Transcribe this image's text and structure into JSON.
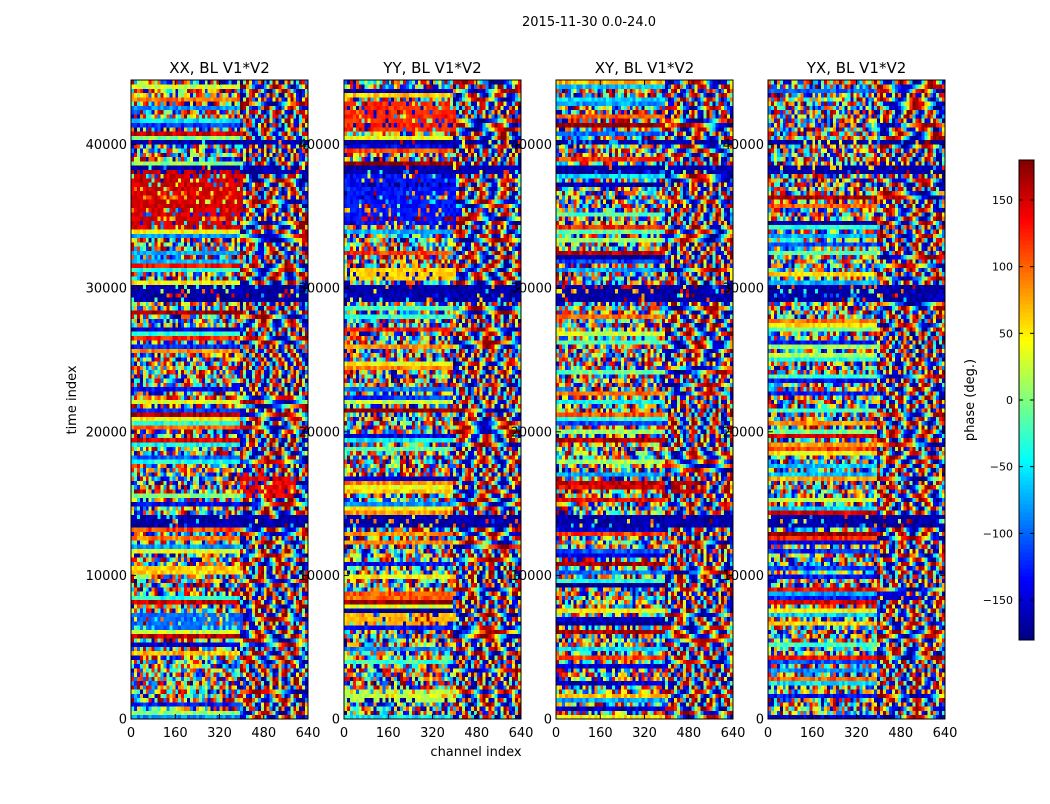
{
  "figure_title": "2015-11-30 0.0-24.0",
  "chart_data": {
    "type": "heatmap",
    "title": "2015-11-30 0.0-24.0",
    "xlabel": "channel index",
    "ylabel": "time index",
    "xlim": [
      0,
      640
    ],
    "ylim": [
      0,
      44500
    ],
    "x_ticks": [
      0,
      160,
      320,
      480,
      640
    ],
    "y_ticks": [
      0,
      10000,
      20000,
      30000,
      40000
    ],
    "colormap": "jet",
    "colorbar": {
      "label": "phase (deg.)",
      "range": [
        -180,
        180
      ],
      "ticks": [
        -150,
        -100,
        -50,
        0,
        50,
        100,
        150
      ]
    },
    "panels": [
      {
        "title": "XX, BL V1*V2",
        "seed": 11,
        "highlights": [
          {
            "y0": 34000,
            "y1": 38200,
            "x0": 0,
            "x1": 400,
            "value": 150
          },
          {
            "y0": 15500,
            "y1": 16800,
            "x0": 400,
            "x1": 600,
            "value": 140
          },
          {
            "y0": 6300,
            "y1": 7300,
            "x0": 0,
            "x1": 400,
            "value": -100
          }
        ]
      },
      {
        "title": "YY, BL V1*V2",
        "seed": 23,
        "highlights": [
          {
            "y0": 41000,
            "y1": 43000,
            "x0": 0,
            "x1": 400,
            "value": 120
          },
          {
            "y0": 34500,
            "y1": 38000,
            "x0": 0,
            "x1": 400,
            "value": -130
          },
          {
            "y0": 30500,
            "y1": 31500,
            "x0": 0,
            "x1": 400,
            "value": 60
          },
          {
            "y0": 6400,
            "y1": 7400,
            "x0": 0,
            "x1": 400,
            "value": 70
          },
          {
            "y0": 1200,
            "y1": 2000,
            "x0": 0,
            "x1": 400,
            "value": 20
          }
        ]
      },
      {
        "title": "XY, BL V1*V2",
        "seed": 37,
        "highlights": [
          {
            "y0": 15600,
            "y1": 16600,
            "x0": 420,
            "x1": 520,
            "value": 160
          }
        ]
      },
      {
        "title": "YX, BL V1*V2",
        "seed": 53,
        "highlights": [
          {
            "y0": 8300,
            "y1": 9000,
            "x0": 420,
            "x1": 560,
            "value": -150
          }
        ]
      }
    ],
    "dark_blue_bands": [
      [
        29000,
        30200
      ],
      [
        13300,
        14200
      ],
      [
        38000,
        38600
      ],
      [
        40000,
        40400
      ]
    ]
  }
}
